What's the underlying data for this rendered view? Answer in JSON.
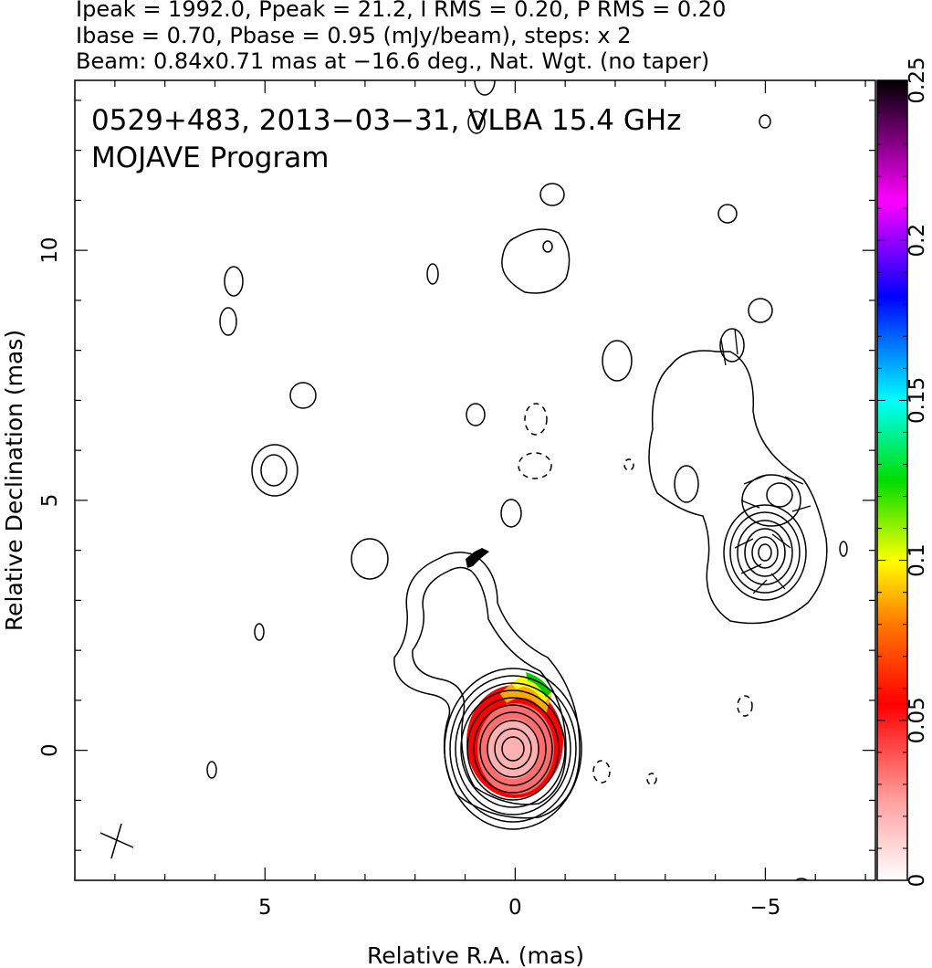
{
  "header": {
    "line1": "Ipeak = 1992.0, Ppeak = 21.2, I RMS = 0.20, P RMS = 0.20",
    "line2": "Ibase = 0.70, Pbase = 0.95 (mJy/beam), steps: x 2",
    "line3": "Beam: 0.84x0.71 mas at −16.6 deg., Nat. Wgt. (no taper)"
  },
  "chart_data": {
    "type": "heatmap",
    "annotation_line1": "0529+483, 2013−03−31, VLBA 15.4 GHz",
    "annotation_line2": "MOJAVE Program",
    "xlabel": "Relative R.A. (mas)",
    "ylabel": "Relative Declination (mas)",
    "xlim": [
      8.8,
      -7.2
    ],
    "ylim": [
      -2.6,
      13.4
    ],
    "x_ticks": [
      5,
      0,
      -5
    ],
    "x_tick_labels": [
      "5",
      "0",
      "−5"
    ],
    "y_ticks": [
      0,
      5,
      10
    ],
    "y_tick_labels": [
      "0",
      "5",
      "10"
    ],
    "colorbar": {
      "range": [
        0,
        0.25
      ],
      "ticks": [
        0,
        0.05,
        0.1,
        0.15,
        0.2,
        0.25
      ],
      "tick_labels": [
        "0",
        "0.05",
        "0.1",
        "0.15",
        "0.2",
        "0.25"
      ],
      "colors": [
        "#ffffff",
        "#ff9a9a",
        "#ff0000",
        "#ff7700",
        "#ffff00",
        "#00dd00",
        "#00ffff",
        "#0000ff",
        "#ff00ff",
        "#000000"
      ]
    },
    "core": {
      "ra": 0.0,
      "dec": 0.0,
      "contour_levels_mJy": [
        0.7,
        1.4,
        2.8,
        5.6,
        11.2,
        22.4,
        44.8,
        89.6,
        179.2,
        358.4,
        716.8,
        1433.6
      ]
    },
    "jet_component": {
      "ra": -4.9,
      "dec": 3.9
    },
    "beam": {
      "major_mas": 0.84,
      "minor_mas": 0.71,
      "pa_deg": -16.6
    },
    "grid": false
  }
}
